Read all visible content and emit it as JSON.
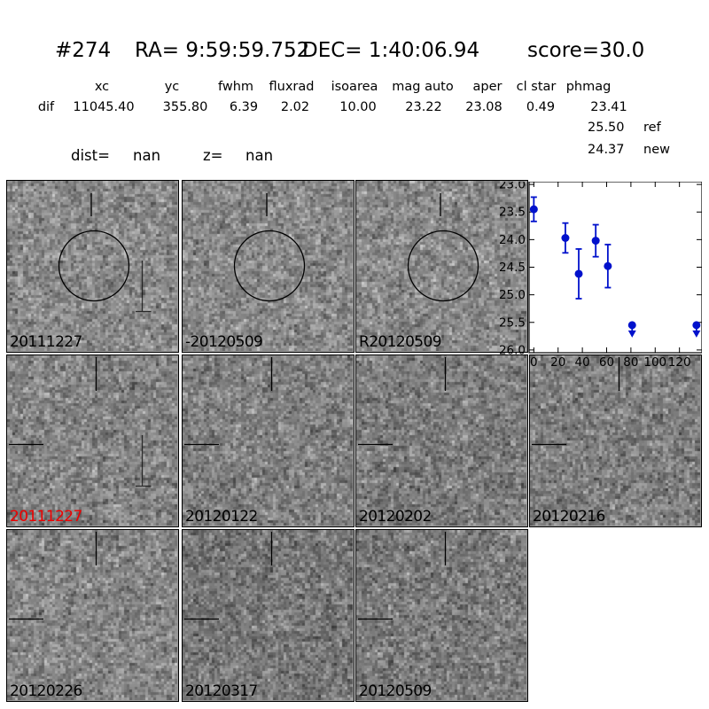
{
  "header": {
    "id": "#274",
    "ra": "RA= 9:59:59.752",
    "dec": "DEC= 1:40:06.94",
    "score": "score=30.0"
  },
  "photometry": {
    "row_label": "dif",
    "columns": [
      "xc",
      "yc",
      "fwhm",
      "fluxrad",
      "isoarea",
      "mag auto",
      "aper",
      "cl star",
      "phmag"
    ],
    "values": [
      "11045.40",
      "355.80",
      "6.39",
      "2.02",
      "10.00",
      "23.22",
      "23.08",
      "0.49",
      "23.41"
    ],
    "extra": [
      {
        "value": "25.50",
        "label": "ref"
      },
      {
        "value": "24.37",
        "label": "new"
      }
    ]
  },
  "distance": {
    "dist_label": "dist=",
    "dist_value": "nan",
    "z_label": "z=",
    "z_value": "nan"
  },
  "cutouts": [
    {
      "label": "20111227",
      "row": 0,
      "col": 0,
      "label_color": "#000000",
      "circle": true,
      "vtick": true,
      "htick": false,
      "bracket": true
    },
    {
      "label": "-20120509",
      "row": 0,
      "col": 1,
      "label_color": "#000000",
      "circle": true,
      "vtick": true,
      "htick": false,
      "bracket": false
    },
    {
      "label": "R20120509",
      "row": 0,
      "col": 2,
      "label_color": "#000000",
      "circle": true,
      "vtick": true,
      "htick": false,
      "bracket": false
    },
    {
      "label": "20111227",
      "row": 1,
      "col": 0,
      "label_color": "#ee0000",
      "circle": false,
      "vtick": true,
      "htick": true,
      "bracket": true
    },
    {
      "label": "20120122",
      "row": 1,
      "col": 1,
      "label_color": "#000000",
      "circle": false,
      "vtick": true,
      "htick": true,
      "bracket": false
    },
    {
      "label": "20120202",
      "row": 1,
      "col": 2,
      "label_color": "#000000",
      "circle": false,
      "vtick": true,
      "htick": true,
      "bracket": false
    },
    {
      "label": "20120216",
      "row": 1,
      "col": 3,
      "label_color": "#000000",
      "circle": false,
      "vtick": true,
      "htick": true,
      "bracket": false
    },
    {
      "label": "20120226",
      "row": 2,
      "col": 0,
      "label_color": "#000000",
      "circle": false,
      "vtick": true,
      "htick": true,
      "bracket": false
    },
    {
      "label": "20120317",
      "row": 2,
      "col": 1,
      "label_color": "#000000",
      "circle": false,
      "vtick": true,
      "htick": true,
      "bracket": false
    },
    {
      "label": "20120509",
      "row": 2,
      "col": 2,
      "label_color": "#000000",
      "circle": false,
      "vtick": true,
      "htick": true,
      "bracket": false
    }
  ],
  "chart_data": {
    "type": "scatter",
    "title": "",
    "xlabel": "",
    "ylabel": "",
    "x_ticks": [
      0,
      20,
      40,
      60,
      80,
      100,
      120
    ],
    "y_ticks": [
      23.0,
      23.5,
      24.0,
      24.5,
      25.0,
      25.5,
      26.0
    ],
    "x_tick_labels": [
      "0",
      "20",
      "40",
      "60",
      "80",
      "100",
      "120"
    ],
    "y_tick_labels": [
      "23.0",
      "23.5",
      "24.0",
      "24.5",
      "25.0",
      "25.5",
      "26.0"
    ],
    "xlim": [
      -3.9,
      138.5
    ],
    "ylim": [
      26.05,
      22.95
    ],
    "y_axis_inverted": true,
    "grid": false,
    "marker_color": "#0011cc",
    "points": [
      {
        "x": 0,
        "mag": 23.45,
        "err": 0.22,
        "limit": false
      },
      {
        "x": 26,
        "mag": 23.97,
        "err": 0.27,
        "limit": false
      },
      {
        "x": 37,
        "mag": 24.62,
        "err": 0.45,
        "limit": false
      },
      {
        "x": 51,
        "mag": 24.02,
        "err": 0.29,
        "limit": false
      },
      {
        "x": 61,
        "mag": 24.48,
        "err": 0.39,
        "limit": false
      },
      {
        "x": 81,
        "mag": 25.55,
        "err": 0,
        "limit": true
      },
      {
        "x": 134,
        "mag": 25.55,
        "err": 0,
        "limit": true
      }
    ]
  }
}
